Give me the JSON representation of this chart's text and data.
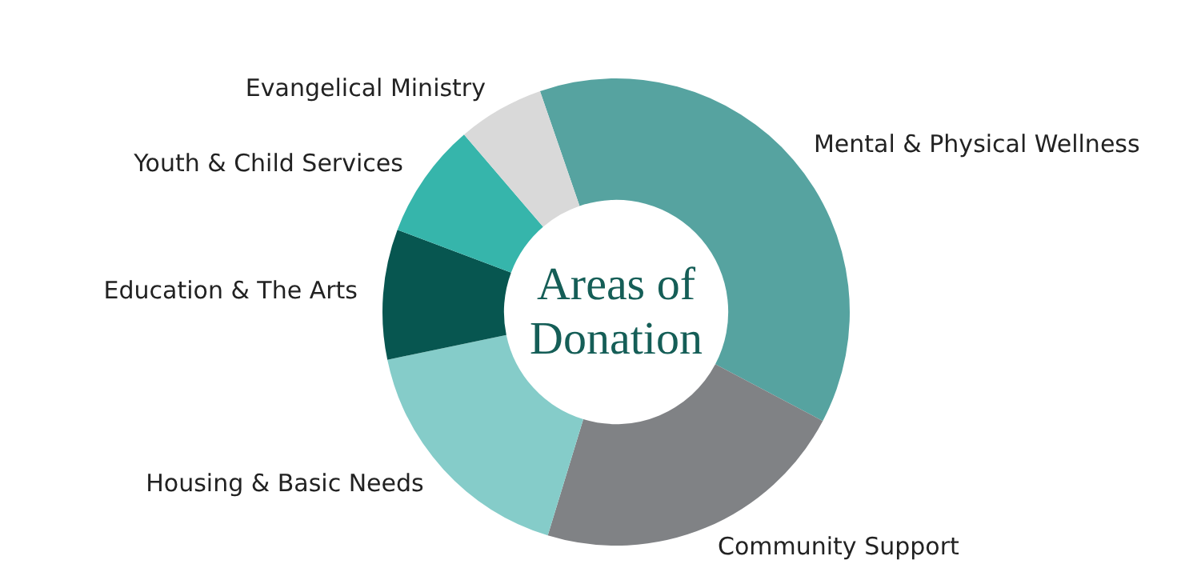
{
  "chart_data": {
    "type": "donut",
    "title": "Areas of Donation",
    "categories": [
      "Mental & Physical Wellness",
      "Community Support",
      "Housing & Basic Needs",
      "Education & The Arts",
      "Youth & Child Services",
      "Evangelical Ministry"
    ],
    "values": [
      38,
      22,
      17,
      9,
      8,
      6
    ],
    "colors": [
      "#56a3a0",
      "#808285",
      "#85ccc9",
      "#075650",
      "#36b5ab",
      "#d9d9d9"
    ]
  }
}
